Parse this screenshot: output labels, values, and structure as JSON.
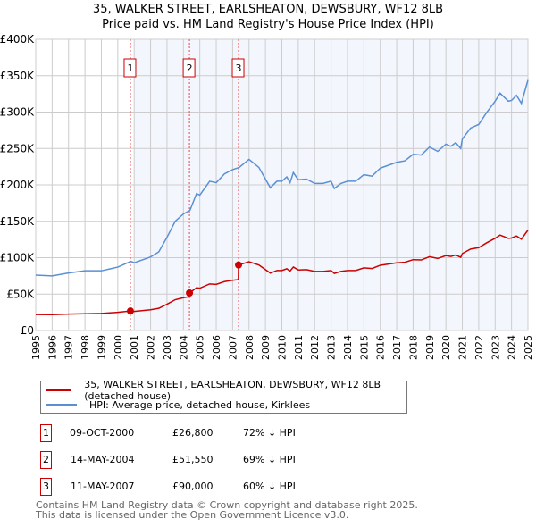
{
  "chart_data": {
    "type": "line",
    "title": "35, WALKER STREET, EARLSHEATON, DEWSBURY, WF12 8LB",
    "subtitle": "Price paid vs. HM Land Registry's House Price Index (HPI)",
    "xlim": [
      1995,
      2025
    ],
    "ylim": [
      0,
      400000
    ],
    "y_ticks": [
      0,
      50000,
      100000,
      150000,
      200000,
      250000,
      300000,
      350000,
      400000
    ],
    "y_tick_labels": [
      "£0",
      "£50K",
      "£100K",
      "£150K",
      "£200K",
      "£250K",
      "£300K",
      "£350K",
      "£400K"
    ],
    "x_ticks": [
      1995,
      1996,
      1997,
      1998,
      1999,
      2000,
      2001,
      2002,
      2003,
      2004,
      2005,
      2006,
      2007,
      2008,
      2009,
      2010,
      2011,
      2012,
      2013,
      2014,
      2015,
      2016,
      2017,
      2018,
      2019,
      2020,
      2021,
      2022,
      2023,
      2024,
      2025
    ],
    "grid": true,
    "series": [
      {
        "name": "35, WALKER STREET, EARLSHEATON, DEWSBURY, WF12 8LB (detached house)",
        "color": "#cc0000",
        "x": [
          1995,
          1996,
          1997,
          1998,
          1999,
          2000,
          2000.77,
          2001,
          2002,
          2002.5,
          2003,
          2003.5,
          2004,
          2004.36,
          2004.37,
          2004.8,
          2005,
          2005.6,
          2006,
          2006.5,
          2007,
          2007.35,
          2007.36,
          2008,
          2008.6,
          2009,
          2009.3,
          2009.7,
          2010,
          2010.3,
          2010.5,
          2010.7,
          2011,
          2011.5,
          2012,
          2012.5,
          2013,
          2013.2,
          2013.6,
          2014,
          2014.5,
          2015,
          2015.5,
          2016,
          2016.5,
          2017,
          2017.5,
          2018,
          2018.5,
          2019,
          2019.5,
          2020,
          2020.3,
          2020.6,
          2020.9,
          2021,
          2021.5,
          2022,
          2022.5,
          2023,
          2023.3,
          2023.8,
          2024,
          2024.3,
          2024.6,
          2025
        ],
        "y": [
          22000,
          21800,
          22500,
          23000,
          23500,
          25000,
          26800,
          26200,
          28500,
          30500,
          36100,
          42300,
          45100,
          46500,
          51550,
          58700,
          58100,
          64000,
          63400,
          67200,
          69000,
          70000,
          90000,
          94500,
          90000,
          83600,
          78800,
          82400,
          82400,
          84800,
          81600,
          87200,
          83200,
          83600,
          81200,
          81200,
          82400,
          78400,
          81200,
          82400,
          82400,
          86000,
          85200,
          89600,
          91300,
          92900,
          93700,
          97300,
          96900,
          101300,
          98900,
          102900,
          101700,
          103700,
          100500,
          105700,
          111800,
          113800,
          120600,
          126600,
          131000,
          126600,
          127000,
          129800,
          125400,
          138000
        ]
      },
      {
        "name": "HPI: Average price, detached house, Kirklees",
        "color": "#5b8fd4",
        "x": [
          1995,
          1996,
          1997,
          1998,
          1999,
          2000,
          2000.8,
          2001,
          2002,
          2002.5,
          2003,
          2003.5,
          2004,
          2004.4,
          2004.8,
          2005,
          2005.6,
          2006,
          2006.5,
          2007,
          2007.4,
          2008,
          2008.6,
          2009,
          2009.3,
          2009.7,
          2010,
          2010.3,
          2010.5,
          2010.7,
          2011,
          2011.5,
          2012,
          2012.5,
          2013,
          2013.2,
          2013.6,
          2014,
          2014.5,
          2015,
          2015.5,
          2016,
          2016.5,
          2017,
          2017.5,
          2018,
          2018.5,
          2019,
          2019.5,
          2020,
          2020.3,
          2020.6,
          2020.9,
          2021,
          2021.5,
          2022,
          2022.5,
          2023,
          2023.3,
          2023.8,
          2024,
          2024.3,
          2024.6,
          2025
        ],
        "y": [
          76000,
          75000,
          79000,
          82000,
          82000,
          87000,
          95000,
          93000,
          101000,
          108000,
          128000,
          150000,
          160000,
          165000,
          188000,
          186000,
          205000,
          203000,
          215000,
          221000,
          224000,
          235000,
          224000,
          208000,
          196000,
          205000,
          205000,
          211000,
          203000,
          217000,
          207000,
          208000,
          202000,
          202000,
          205000,
          195000,
          202000,
          205000,
          205000,
          214000,
          212000,
          223000,
          227000,
          231000,
          233000,
          242000,
          241000,
          252000,
          246000,
          256000,
          253000,
          258000,
          250000,
          263000,
          278000,
          283000,
          300000,
          315000,
          326000,
          315000,
          316000,
          323000,
          312000,
          344000
        ]
      }
    ],
    "sales": [
      {
        "label": "1",
        "x": 2000.77,
        "y": 26800,
        "date": "09-OCT-2000",
        "price": "£26,800",
        "hpi": "72% ↓ HPI"
      },
      {
        "label": "2",
        "x": 2004.37,
        "y": 51550,
        "date": "14-MAY-2004",
        "price": "£51,550",
        "hpi": "69% ↓ HPI"
      },
      {
        "label": "3",
        "x": 2007.36,
        "y": 90000,
        "date": "11-MAY-2007",
        "price": "£90,000",
        "hpi": "60% ↓ HPI"
      }
    ],
    "legend_placement": "below"
  },
  "footer": {
    "line1": "Contains HM Land Registry data © Crown copyright and database right 2025.",
    "line2": "This data is licensed under the Open Government Licence v3.0."
  }
}
